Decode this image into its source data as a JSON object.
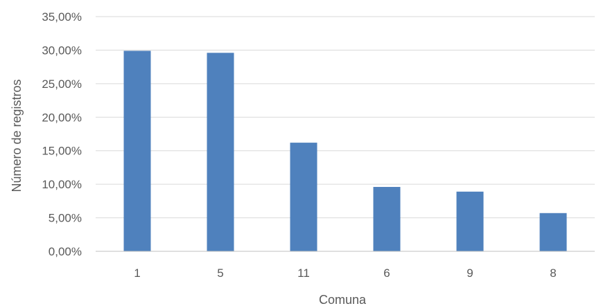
{
  "chart_data": {
    "type": "bar",
    "categories": [
      "1",
      "5",
      "11",
      "6",
      "9",
      "8"
    ],
    "values": [
      29.9,
      29.6,
      16.2,
      9.6,
      8.9,
      5.7
    ],
    "y_ticks": [
      "0,00%",
      "5,00%",
      "10,00%",
      "15,00%",
      "20,00%",
      "25,00%",
      "30,00%",
      "35,00%"
    ],
    "xlabel": "Comuna",
    "ylabel": "Número de registros",
    "ylim": [
      0,
      35
    ],
    "grid": true,
    "legend": "none",
    "bar_color": "#4f81bd",
    "grid_color": "#d9d9d9",
    "axis_color": "#bfbfbf"
  }
}
